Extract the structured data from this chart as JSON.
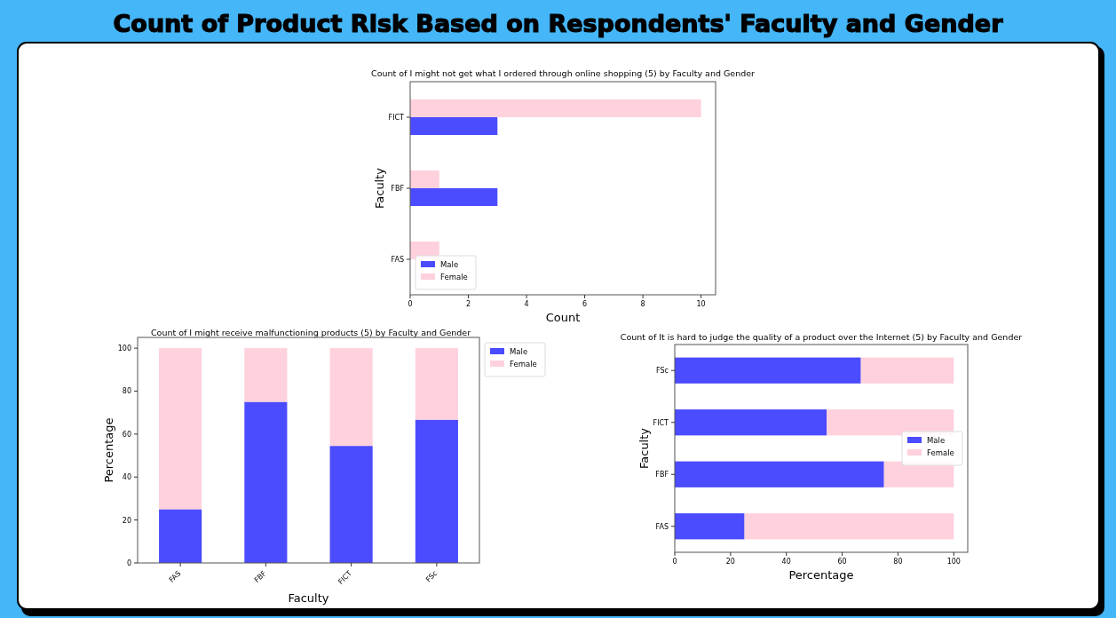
{
  "chart_data": [
    {
      "type": "bar",
      "orientation": "horizontal",
      "title": "Count of I might not get what I ordered through online shopping (5) by Faculty and Gender",
      "annotations": [
        "Count of Product Risk Based on Respondents' Faculty and Gender"
      ],
      "xlabel": "Count",
      "ylabel": "Faculty",
      "categories": [
        "FICT",
        "FBF",
        "FAS"
      ],
      "series": [
        {
          "name": "Male",
          "color": "#4b4bff",
          "values": [
            3,
            3,
            0
          ]
        },
        {
          "name": "Female",
          "color": "#ffd1dc",
          "values": [
            10,
            1,
            1
          ]
        }
      ],
      "xlim": [
        0,
        10.5
      ],
      "xticks": [
        0,
        2,
        4,
        6,
        8,
        10
      ],
      "legend": "bottom left"
    },
    {
      "type": "bar",
      "stacked": true,
      "title": "Count of I might receive malfunctioning products (5) by Faculty and Gender",
      "xlabel": "Faculty",
      "ylabel": "Percentage",
      "categories": [
        "FAS",
        "FBF",
        "FICT",
        "FSc"
      ],
      "series": [
        {
          "name": "Male",
          "color": "#4b4bff",
          "values": [
            25,
            75,
            54.5,
            66.7
          ]
        },
        {
          "name": "Female",
          "color": "#ffd1dc",
          "values": [
            75,
            25,
            45.5,
            33.3
          ]
        }
      ],
      "ylim": [
        0,
        105
      ],
      "yticks": [
        0,
        20,
        40,
        60,
        80,
        100
      ],
      "legend": "top right"
    },
    {
      "type": "bar",
      "stacked": true,
      "orientation": "horizontal",
      "title": "Count of It is hard to judge the quality of a product over the Internet (5) by Faculty and Gender",
      "xlabel": "Percentage",
      "ylabel": "Faculty",
      "categories": [
        "FSc",
        "FICT",
        "FBF",
        "FAS"
      ],
      "series": [
        {
          "name": "Male",
          "color": "#4b4bff",
          "values": [
            66.7,
            54.5,
            75,
            25
          ]
        },
        {
          "name": "Female",
          "color": "#ffd1dc",
          "values": [
            33.3,
            45.5,
            25,
            75
          ]
        }
      ],
      "xlim": [
        0,
        105
      ],
      "xticks": [
        0,
        20,
        40,
        60,
        80,
        100
      ],
      "legend": "right"
    }
  ]
}
